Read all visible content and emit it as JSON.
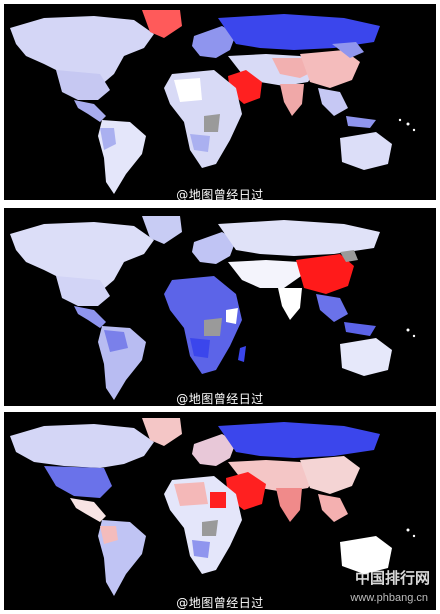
{
  "panels": [
    {
      "caption": "@地图曾经日过",
      "highlight": "#ff2020"
    },
    {
      "caption": "@地图曾经日过",
      "highlight": "#ff1a1a"
    },
    {
      "caption": "@地图曾经日过",
      "highlight": "#ff2020"
    }
  ],
  "watermark": {
    "site": "中国排行网",
    "url": "www.phbang.cn"
  },
  "colors": {
    "ocean": "#000000",
    "deep_blue": "#3344ee",
    "mid_blue": "#6677ee",
    "light_blue": "#c8ccf4",
    "pale": "#e8e8f8",
    "white": "#ffffff",
    "pink": "#f4b8b8",
    "red": "#ff2020",
    "gray": "#9a9a9a"
  }
}
